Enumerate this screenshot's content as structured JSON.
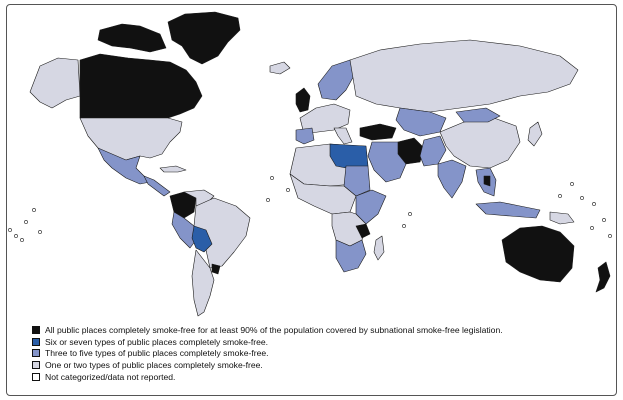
{
  "colors": {
    "all_public_places": "#111111",
    "six_or_seven": "#2a5ea8",
    "three_to_five": "#8494c9",
    "one_or_two": "#d6d7e3",
    "not_reported": "#ffffff",
    "border": "#1a1a1a"
  },
  "legend": {
    "items": [
      {
        "key": "all_public_places",
        "label": "All public places completely smoke-free for at least 90% of the population covered by subnational smoke-free legislation."
      },
      {
        "key": "six_or_seven",
        "label": "Six or seven types of public places completely smoke-free."
      },
      {
        "key": "three_to_five",
        "label": "Three to five types of public places completely smoke-free."
      },
      {
        "key": "one_or_two",
        "label": "One or two types of public places completely smoke-free."
      },
      {
        "key": "not_reported",
        "label": "Not categorized/data not reported."
      }
    ]
  }
}
